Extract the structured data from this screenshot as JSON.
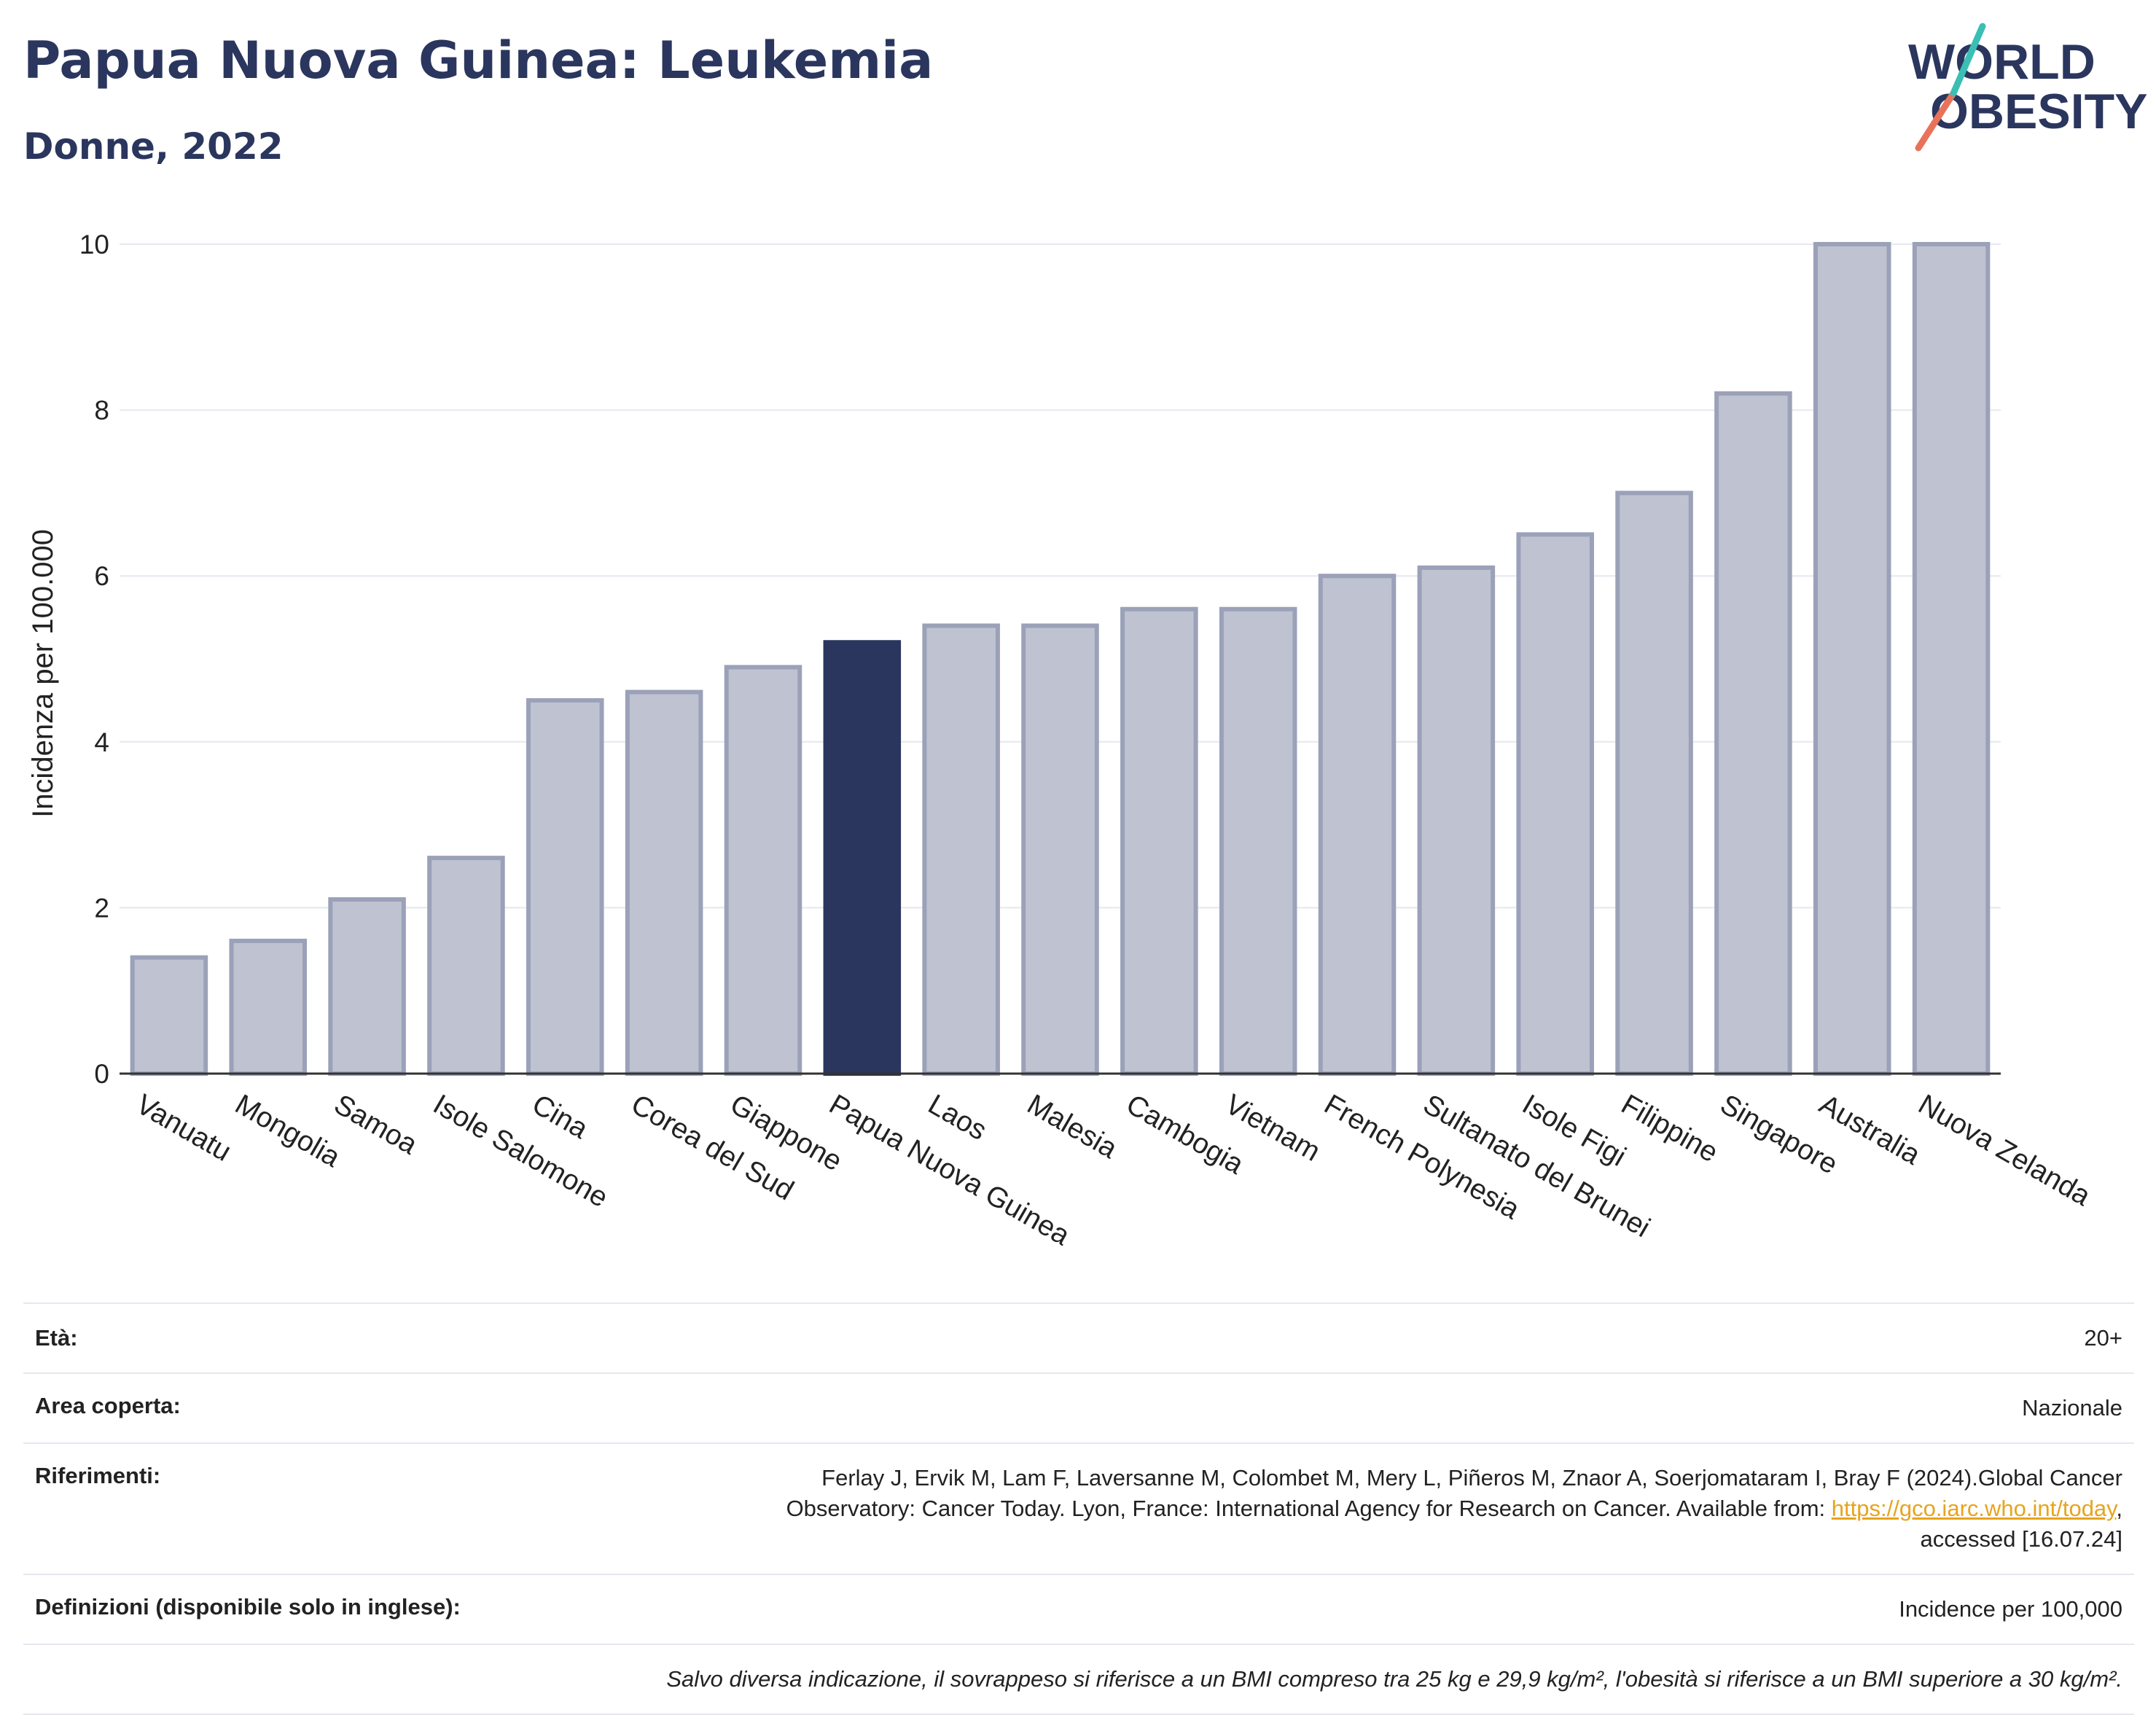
{
  "title": "Papua Nuova Guinea: Leukemia",
  "subtitle": "Donne, 2022",
  "logo": {
    "line1": "WORLD",
    "line2": "OBESITY",
    "accent_colors": [
      "#e8735a",
      "#3bbfb4"
    ]
  },
  "colors": {
    "highlight": "#2b365e",
    "bar": "#bfc3d1",
    "bar_stroke": "#9aa1b8",
    "axis": "#333333",
    "grid": "#e6e8ef"
  },
  "chart_data": {
    "type": "bar",
    "ylabel": "Incidenza per 100.000",
    "ylim": [
      0,
      10
    ],
    "yticks": [
      0,
      2,
      4,
      6,
      8,
      10
    ],
    "highlight": "Papua Nuova Guinea",
    "categories": [
      "Vanuatu",
      "Mongolia",
      "Samoa",
      "Isole Salomone",
      "Cina",
      "Corea del Sud",
      "Giappone",
      "Papua Nuova Guinea",
      "Laos",
      "Malesia",
      "Cambogia",
      "Vietnam",
      "French Polynesia",
      "Sultanato del Brunei",
      "Isole Figi",
      "Filippine",
      "Singapore",
      "Australia",
      "Nuova Zelanda"
    ],
    "values": [
      1.4,
      1.6,
      2.1,
      2.6,
      4.5,
      4.6,
      4.9,
      5.2,
      5.4,
      5.4,
      5.6,
      5.6,
      6.0,
      6.1,
      6.5,
      7.0,
      8.2,
      10.0,
      10.0
    ],
    "grid": true
  },
  "footer": {
    "age_label": "Età:",
    "age_value": "20+",
    "area_label": "Area coperta:",
    "area_value": "Nazionale",
    "refs_label": "Riferimenti:",
    "refs_text1": "Ferlay J, Ervik M, Lam F, Laversanne M, Colombet M, Mery L, Piñeros M, Znaor A, Soerjomataram I, Bray F (2024).Global Cancer",
    "refs_text2": "Observatory: Cancer Today. Lyon, France: International Agency for Research on Cancer. Available from: ",
    "refs_link": "https://gco.iarc.who.int/today",
    "refs_text3": ",",
    "refs_text4": "accessed [16.07.24]",
    "defs_label": "Definizioni (disponibile solo in inglese):",
    "defs_value": "Incidence per 100,000",
    "note": "Salvo diversa indicazione, il sovrappeso si riferisce a un BMI compreso tra 25 kg e 29,9 kg/m², l'obesità si riferisce a un BMI superiore a 30 kg/m²."
  }
}
